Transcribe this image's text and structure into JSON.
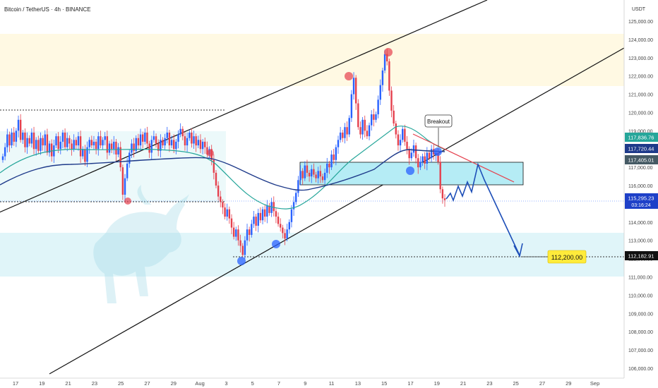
{
  "header": {
    "symbol": "Bitcoin / TetherUS · 4h · BINANCE",
    "currency": "USDT"
  },
  "chart_data": {
    "type": "candlestick",
    "title": "Bitcoin / TetherUS · 4h · BINANCE",
    "currency": "USDT",
    "y_axis": {
      "range": [
        106000,
        125300
      ],
      "ticks": [
        125000,
        124000,
        123000,
        122000,
        121000,
        120000,
        119000,
        118000,
        117000,
        116000,
        115000,
        114000,
        113000,
        112000,
        111000,
        110000,
        109000,
        108000,
        107000,
        106000
      ],
      "tick_labels": [
        "125,000.00",
        "124,000.00",
        "123,000.00",
        "122,000.00",
        "121,000.00",
        "120,000.00",
        "119,000.00",
        "118,000.00",
        "117,000.00",
        "116,000.00",
        "115,000.00",
        "114,000.00",
        "113,000.00",
        "112,000.00",
        "111,000.00",
        "110,000.00",
        "109,000.00",
        "108,000.00",
        "107,000.00",
        "106,000.00"
      ]
    },
    "x_axis": {
      "labels": [
        "17",
        "19",
        "21",
        "23",
        "25",
        "27",
        "29",
        "Aug",
        "3",
        "5",
        "7",
        "9",
        "11",
        "13",
        "15",
        "17",
        "19",
        "21",
        "23",
        "25",
        "27",
        "29",
        "Sep"
      ]
    },
    "price_labels": [
      {
        "value": 117836.76,
        "text": "117,836.76",
        "color": "#26a69a"
      },
      {
        "value": 117720.44,
        "text": "117,720.44",
        "color": "#1e3a8a"
      },
      {
        "value": 117405.01,
        "text": "117,405.01",
        "color": "#455a64"
      },
      {
        "value": 115295.23,
        "text": "115,295.23",
        "sub": "03:16:24",
        "color": "#1e40c8"
      },
      {
        "value": 112182.91,
        "text": "112,182.91",
        "color": "#111111"
      }
    ],
    "annotations": {
      "breakout_label": "Breakout",
      "target_label": "112,200.00",
      "target_value": 112200
    },
    "series": [
      {
        "name": "",
        "kind": "candles",
        "closes": [
          117600,
          118100,
          118800,
          118200,
          118900,
          118400,
          119000,
          119600,
          118500,
          118900,
          118100,
          118600,
          118300,
          118900,
          118000,
          118500,
          117900,
          118600,
          118200,
          118800,
          117800,
          118300,
          117600,
          118200,
          118700,
          118000,
          118400,
          118900,
          118100,
          118600,
          118300,
          118000,
          118500,
          118200,
          118700,
          117600,
          118000,
          117300,
          118100,
          118500,
          118200,
          118400,
          118000,
          118700,
          118200,
          118500,
          118700,
          117800,
          118300,
          118000,
          118400,
          117700,
          118100,
          117000,
          115500,
          116400,
          117200,
          117800,
          118300,
          117900,
          118600,
          118200,
          118800,
          118400,
          118900,
          118300,
          117800,
          118500,
          118700,
          118300,
          117900,
          118500,
          118200,
          118600,
          118900,
          118200,
          118500,
          118000,
          118400,
          118800,
          119100,
          118700,
          118200,
          118600,
          118900,
          118300,
          118700,
          118200,
          118500,
          118000,
          118400,
          118100,
          117700,
          118000,
          117400,
          116700,
          116000,
          115400,
          115100,
          114800,
          114300,
          114700,
          114200,
          113700,
          113200,
          113600,
          113000,
          112700,
          112200,
          113000,
          113600,
          113300,
          113900,
          114300,
          113800,
          114500,
          114100,
          114700,
          114300,
          114900,
          114500,
          115100,
          114600,
          114300,
          113900,
          113700,
          113400,
          113100,
          113600,
          114000,
          114700,
          115100,
          115600,
          116300,
          116800,
          116400,
          117100,
          116700,
          116500,
          116900,
          116600,
          116400,
          116800,
          116500,
          116300,
          116700,
          117200,
          117000,
          117700,
          117400,
          118100,
          118500,
          118900,
          118600,
          119200,
          118800,
          119700,
          121000,
          121900,
          120500,
          119200,
          118800,
          119600,
          119000,
          118700,
          119300,
          119900,
          119600,
          119900,
          120700,
          121500,
          122300,
          123200,
          122800,
          121200,
          120100,
          119400,
          118800,
          118200,
          118500,
          119100,
          118400,
          118000,
          117500,
          117800,
          118200,
          117500,
          117000,
          117300,
          117600,
          117200,
          117800,
          117500,
          118000,
          117700,
          117800,
          117300,
          115800,
          115300,
          115200
        ]
      }
    ]
  },
  "colors": {
    "up": "#2962ff",
    "down": "#e5404d",
    "ema_fast": "#26a69a",
    "ema_slow": "#1e3a8a",
    "channel": "#111111",
    "zone": "#b2ebf2",
    "resistance_zone": "#fff5d6",
    "forecast": "#1e4fb8",
    "trendline": "#e5404d"
  }
}
